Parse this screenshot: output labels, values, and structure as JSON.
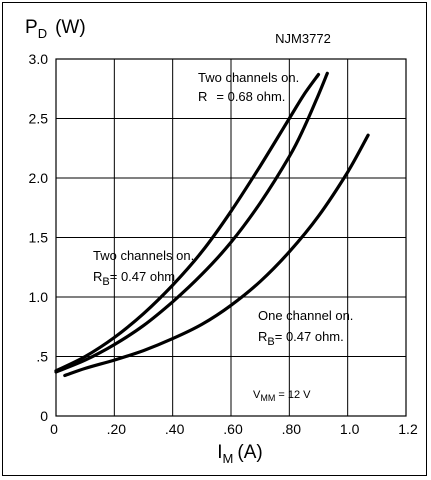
{
  "chart_data": {
    "type": "line",
    "title": "NJM3772",
    "ylabel_main": "P",
    "ylabel_sub": "D",
    "ylabel_unit": "(W)",
    "xlabel_main": "I",
    "xlabel_sub": "M",
    "xlabel_unit": "(A)",
    "xlim": [
      0,
      1.2
    ],
    "ylim": [
      0,
      3.0
    ],
    "grid": true,
    "x_ticks": [
      {
        "v": 0,
        "label": "0"
      },
      {
        "v": 0.2,
        "label": ".20"
      },
      {
        "v": 0.4,
        "label": ".40"
      },
      {
        "v": 0.6,
        "label": ".60"
      },
      {
        "v": 0.8,
        "label": ".80"
      },
      {
        "v": 1.0,
        "label": "1.0"
      },
      {
        "v": 1.2,
        "label": "1.2"
      }
    ],
    "y_ticks": [
      {
        "v": 0,
        "label": "0"
      },
      {
        "v": 0.5,
        "label": ".5"
      },
      {
        "v": 1.0,
        "label": "1.0"
      },
      {
        "v": 1.5,
        "label": "1.5"
      },
      {
        "v": 2.0,
        "label": "2.0"
      },
      {
        "v": 2.5,
        "label": "2.5"
      },
      {
        "v": 3.0,
        "label": "3.0"
      }
    ],
    "series": [
      {
        "x": [
          0,
          0.1,
          0.2,
          0.3,
          0.4,
          0.5,
          0.6,
          0.7,
          0.8,
          0.85,
          0.9
        ],
        "y": [
          0.38,
          0.5,
          0.66,
          0.86,
          1.1,
          1.38,
          1.72,
          2.1,
          2.5,
          2.7,
          2.87
        ]
      },
      {
        "x": [
          0,
          0.1,
          0.2,
          0.3,
          0.4,
          0.5,
          0.6,
          0.7,
          0.8,
          0.85,
          0.9,
          0.93
        ],
        "y": [
          0.37,
          0.47,
          0.6,
          0.76,
          0.96,
          1.19,
          1.46,
          1.79,
          2.18,
          2.42,
          2.7,
          2.88
        ]
      },
      {
        "x": [
          0.03,
          0.1,
          0.2,
          0.3,
          0.4,
          0.5,
          0.6,
          0.7,
          0.8,
          0.9,
          1.0,
          1.07
        ],
        "y": [
          0.34,
          0.4,
          0.47,
          0.55,
          0.65,
          0.77,
          0.93,
          1.13,
          1.38,
          1.68,
          2.05,
          2.36
        ]
      }
    ],
    "annotations": {
      "a1_line1": "Two channels on.",
      "a1_line2_a": "R",
      "a1_line2_b": "= 0.68 ohm.",
      "a2_line1": "Two channels on.",
      "a2_line2_a": "R",
      "a2_line2_sub": "B",
      "a2_line2_b": "= 0.47 ohm.",
      "a3_line1": "One channel on.",
      "a3_line2_a": "R",
      "a3_line2_sub": "B",
      "a3_line2_b": "= 0.47 ohm.",
      "vmm_a": "V",
      "vmm_sub": "MM",
      "vmm_b": "= 12 V"
    }
  }
}
